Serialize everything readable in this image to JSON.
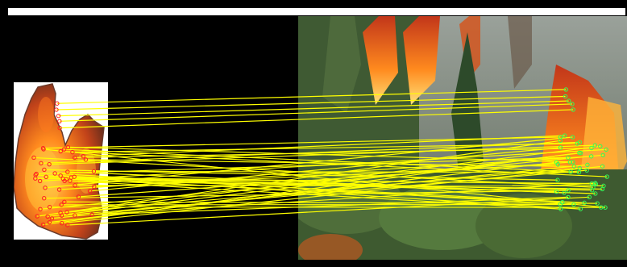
{
  "image": {
    "left_patch": "fire-template",
    "right_scene": "forest-fire",
    "match_line_color": "#ffff00",
    "left_keypoint_color": "#ff2020",
    "right_keypoint_color": "#33ff55",
    "match_count": 56
  }
}
